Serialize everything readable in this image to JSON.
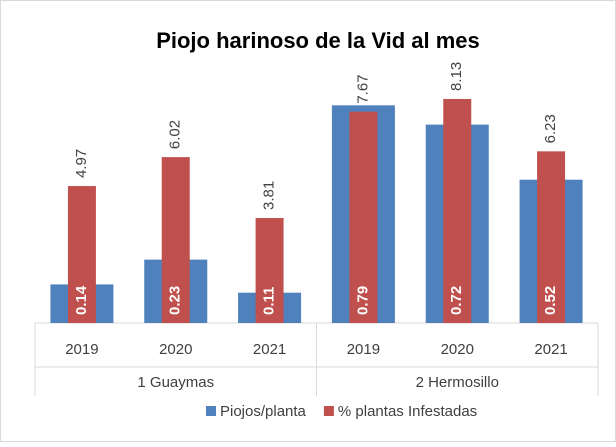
{
  "chart_data": {
    "type": "bar",
    "title": "Piojo harinoso de la Vid al mes",
    "groups": [
      {
        "name": "1 Guaymas",
        "categories": [
          "2019",
          "2020",
          "2021"
        ]
      },
      {
        "name": "2 Hermosillo",
        "categories": [
          "2019",
          "2020",
          "2021"
        ]
      }
    ],
    "series": [
      {
        "name": "Piojos/planta",
        "color": "#4f81bd",
        "values": [
          0.14,
          0.23,
          0.11,
          0.79,
          0.72,
          0.52
        ]
      },
      {
        "name": "% plantas Infestadas",
        "color": "#c0504d",
        "axis": "y2",
        "values": [
          4.97,
          6.02,
          3.81,
          7.67,
          8.13,
          6.23
        ]
      }
    ],
    "ylim": [
      0,
      0.9
    ],
    "y2lim": [
      0,
      9
    ],
    "legend": "bottom"
  }
}
